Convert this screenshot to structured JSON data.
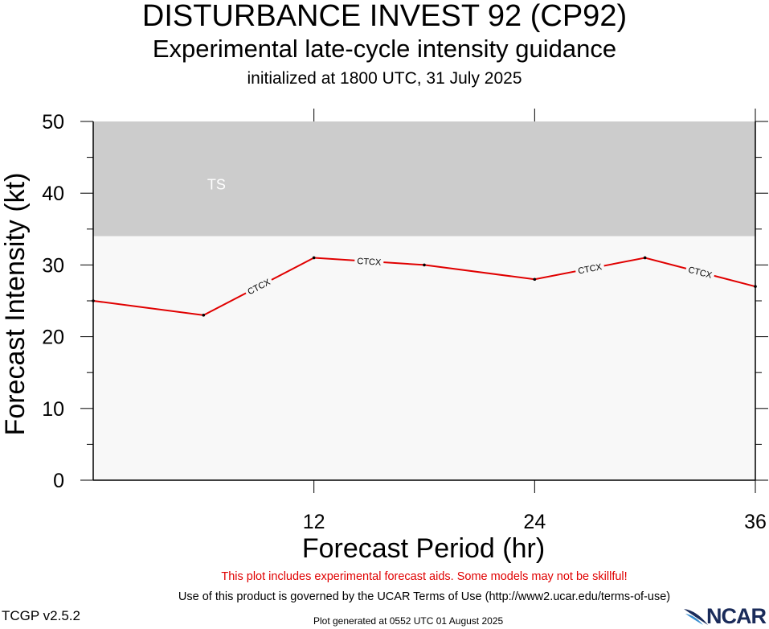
{
  "header": {
    "title": "DISTURBANCE INVEST 92 (CP92)",
    "subtitle": "Experimental late-cycle intensity guidance",
    "initialized": "initialized at 1800 UTC, 31 July 2025"
  },
  "chart_data": {
    "type": "line",
    "xlabel": "Forecast Period (hr)",
    "ylabel": "Forecast Intensity (kt)",
    "xlim": [
      0,
      36
    ],
    "ylim": [
      0,
      50
    ],
    "x_ticks": [
      12,
      24,
      36
    ],
    "y_ticks": [
      0,
      10,
      20,
      30,
      40,
      50
    ],
    "grid": false,
    "bands": [
      {
        "label": "TS",
        "from": 34,
        "to": 50,
        "color": "#cccccc"
      },
      {
        "label": "",
        "from": 0,
        "to": 34,
        "color": "#f8f8f8"
      }
    ],
    "series": [
      {
        "name": "CTCX",
        "color": "#e00000",
        "x": [
          0,
          6,
          12,
          18,
          24,
          30,
          36
        ],
        "y": [
          25,
          23,
          31,
          30,
          28,
          31,
          27
        ]
      }
    ]
  },
  "footer": {
    "warning": "This plot includes experimental forecast aids. Some models may not be skillful!",
    "terms": "Use of this product is governed by the UCAR Terms of Use (http://www2.ucar.edu/terms-of-use)",
    "version": "TCGP v2.5.2",
    "generated": "Plot generated at 0552 UTC   01 August 2025",
    "logo": "NCAR"
  }
}
